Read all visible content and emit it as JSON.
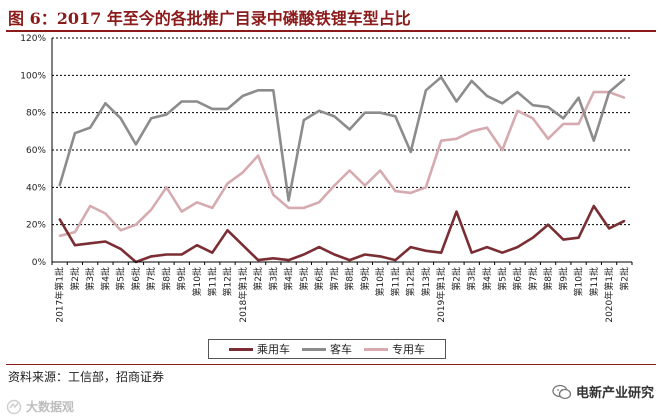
{
  "title": "图 6：2017 年至今的各批推广目录中磷酸铁锂车型占比",
  "source": "资料来源：工信部，招商证券",
  "watermark_right": "电新产业研究",
  "watermark_left": "大数据观",
  "watermark_icons": [
    "wechat-icon",
    "logo-icon"
  ],
  "colors": {
    "title": "#8b1a1a",
    "passenger": "#7a2e34",
    "bus": "#8c8c8c",
    "special": "#d5abaf"
  },
  "chart_data": {
    "type": "line",
    "ylim": [
      0,
      120
    ],
    "y_ticks": [
      "0%",
      "20%",
      "40%",
      "60%",
      "80%",
      "100%",
      "120%"
    ],
    "grid": true,
    "legend": "bottom",
    "categories": [
      "2017年第1批",
      "第2批",
      "第3批",
      "第4批",
      "第5批",
      "第6批",
      "第7批",
      "第8批",
      "第9批",
      "第10批",
      "第11批",
      "第12批",
      "2018年第1批",
      "第2批",
      "第3批",
      "第4批",
      "第5批",
      "第6批",
      "第7批",
      "第8批",
      "第9批",
      "第10批",
      "第11批",
      "第12批",
      "第13批",
      "2019年第1批",
      "第2批",
      "第3批",
      "第4批",
      "第5批",
      "第6批",
      "第7批",
      "第8批",
      "第9批",
      "第10批",
      "第11批",
      "2020年第1批",
      "第2批"
    ],
    "series": [
      {
        "name": "乘用车",
        "values": [
          23,
          9,
          10,
          11,
          7,
          0,
          3,
          4,
          4,
          9,
          5,
          17,
          9,
          1,
          2,
          1,
          4,
          8,
          4,
          1,
          4,
          3,
          1,
          8,
          6,
          5,
          27,
          5,
          8,
          5,
          8,
          13,
          20,
          12,
          13,
          30,
          18,
          22
        ]
      },
      {
        "name": "客车",
        "values": [
          41,
          69,
          72,
          85,
          77,
          63,
          77,
          79,
          86,
          86,
          82,
          82,
          89,
          92,
          92,
          33,
          76,
          81,
          78,
          71,
          80,
          80,
          78,
          59,
          92,
          99,
          86,
          97,
          89,
          85,
          91,
          84,
          83,
          77,
          88,
          65,
          91,
          98
        ]
      },
      {
        "name": "专用车",
        "values": [
          14,
          16,
          30,
          26,
          17,
          20,
          28,
          40,
          27,
          32,
          29,
          42,
          48,
          57,
          36,
          29,
          29,
          32,
          41,
          49,
          41,
          49,
          38,
          37,
          40,
          65,
          66,
          70,
          72,
          60,
          81,
          77,
          66,
          74,
          74,
          91,
          91,
          88
        ]
      }
    ]
  }
}
